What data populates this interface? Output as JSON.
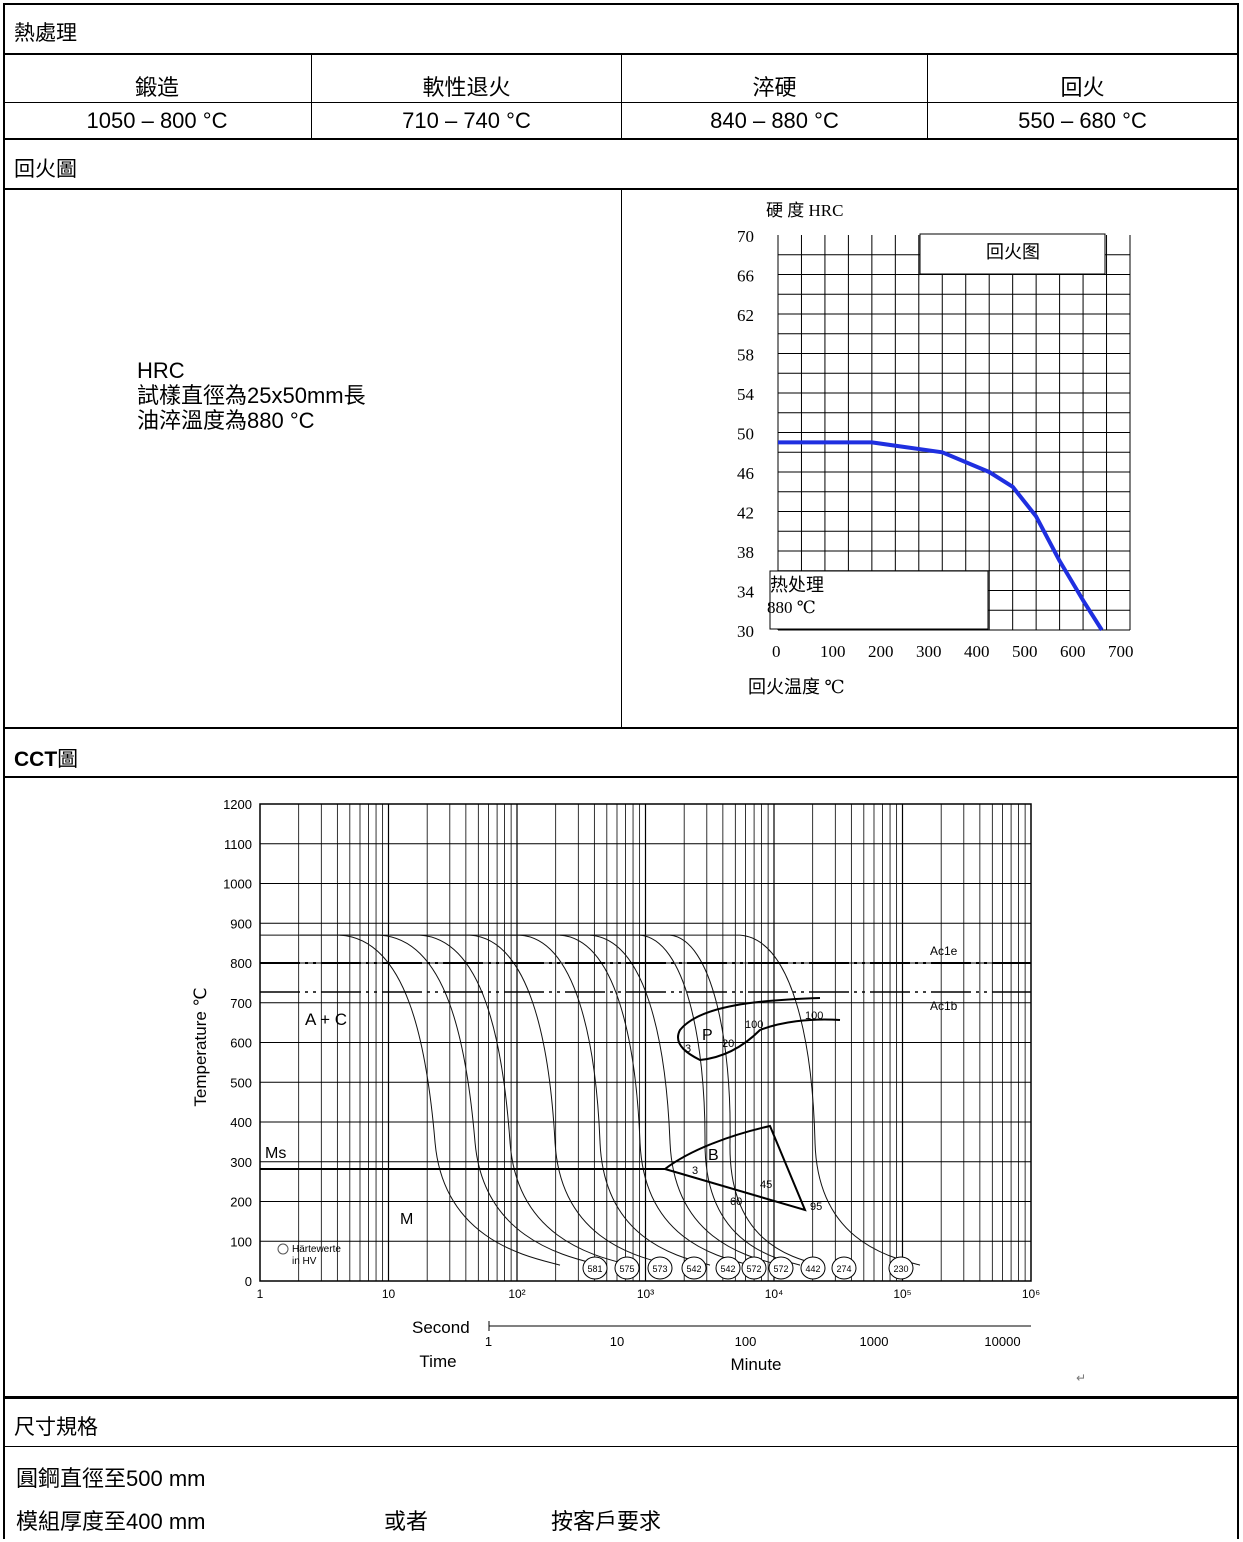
{
  "heat_treatment": {
    "section_title": "熱處理",
    "columns": [
      {
        "header": "鍛造",
        "value": "1050 – 800 °C"
      },
      {
        "header": "軟性退火",
        "value": "710 – 740 °C"
      },
      {
        "header": "淬硬",
        "value": "840 – 880 °C"
      },
      {
        "header": "回火",
        "value": "550 – 680 °C"
      }
    ]
  },
  "tempering": {
    "section_title": "回火圖",
    "note_lines": [
      "HRC",
      "試樣直徑為25x50mm長",
      "油淬溫度為880 °C"
    ]
  },
  "tempering_chart": {
    "chart_data": {
      "type": "line",
      "title": "回火图",
      "ylabel": "硬 度 HRC",
      "xlabel": "回火温度 ℃",
      "ylim": [
        30,
        70
      ],
      "xlim": [
        0,
        750
      ],
      "y_ticks": [
        "70",
        "66",
        "62",
        "58",
        "54",
        "50",
        "46",
        "42",
        "38",
        "34",
        "30"
      ],
      "x_ticks": [
        "0",
        "100",
        "200",
        "300",
        "400",
        "500",
        "600",
        "700"
      ],
      "series": [
        {
          "x": [
            0,
            200,
            350,
            450,
            500,
            550,
            600,
            650,
            690
          ],
          "y": [
            49,
            49,
            48,
            46,
            44.5,
            41.5,
            37,
            33,
            30
          ]
        }
      ],
      "annotation": {
        "line1": "热处理",
        "line2": "880 ℃"
      },
      "grid": true,
      "line_color": "#1f2fe0"
    }
  },
  "cct": {
    "section_title_bold": "CCT",
    "section_title_rest": "圖",
    "chart_data": {
      "type": "line",
      "ylabel": "Temperature ℃",
      "xlabel": "Time",
      "x_scale": "log",
      "ylim": [
        0,
        1200
      ],
      "y_ticks": [
        "1200",
        "1100",
        "1000",
        "900",
        "800",
        "700",
        "600",
        "500",
        "400",
        "300",
        "200",
        "100",
        "0"
      ],
      "x_ticks_seconds": [
        "1",
        "10",
        "10²",
        "10³",
        "10⁴",
        "10⁵",
        "10⁶"
      ],
      "second_label": "Second",
      "minute_label": "Minute",
      "x_ticks_minutes": [
        "1",
        "10",
        "100",
        "1000",
        "10000"
      ],
      "lines": {
        "Ac1e": 800,
        "Ac1b": 730,
        "Ms": 280
      },
      "line_labels": {
        "Ac1e": "Ac1e",
        "Ac1b": "Ac1b",
        "Ms": "Ms"
      },
      "regions": {
        "austenite_carbide": "A + C",
        "pearlite": "P",
        "bainite": "B",
        "martensite": "M"
      },
      "pearlite_percentages": [
        "3",
        "20",
        "100",
        "100"
      ],
      "bainite_percentages": [
        "3",
        "45",
        "60",
        "95"
      ],
      "hardness_label": [
        "Härtewerte",
        "in HV"
      ],
      "hardness_values_hv": [
        "581",
        "575",
        "573",
        "542",
        "542",
        "572",
        "572",
        "442",
        "274",
        "230"
      ]
    },
    "trailing_mark": "↵"
  },
  "dimensions": {
    "section_title": "尺寸規格",
    "line1": "圓鋼直徑至500 mm",
    "line2_a": "模組厚度至400 mm",
    "line2_b": "或者",
    "line2_c": "按客戶要求"
  }
}
